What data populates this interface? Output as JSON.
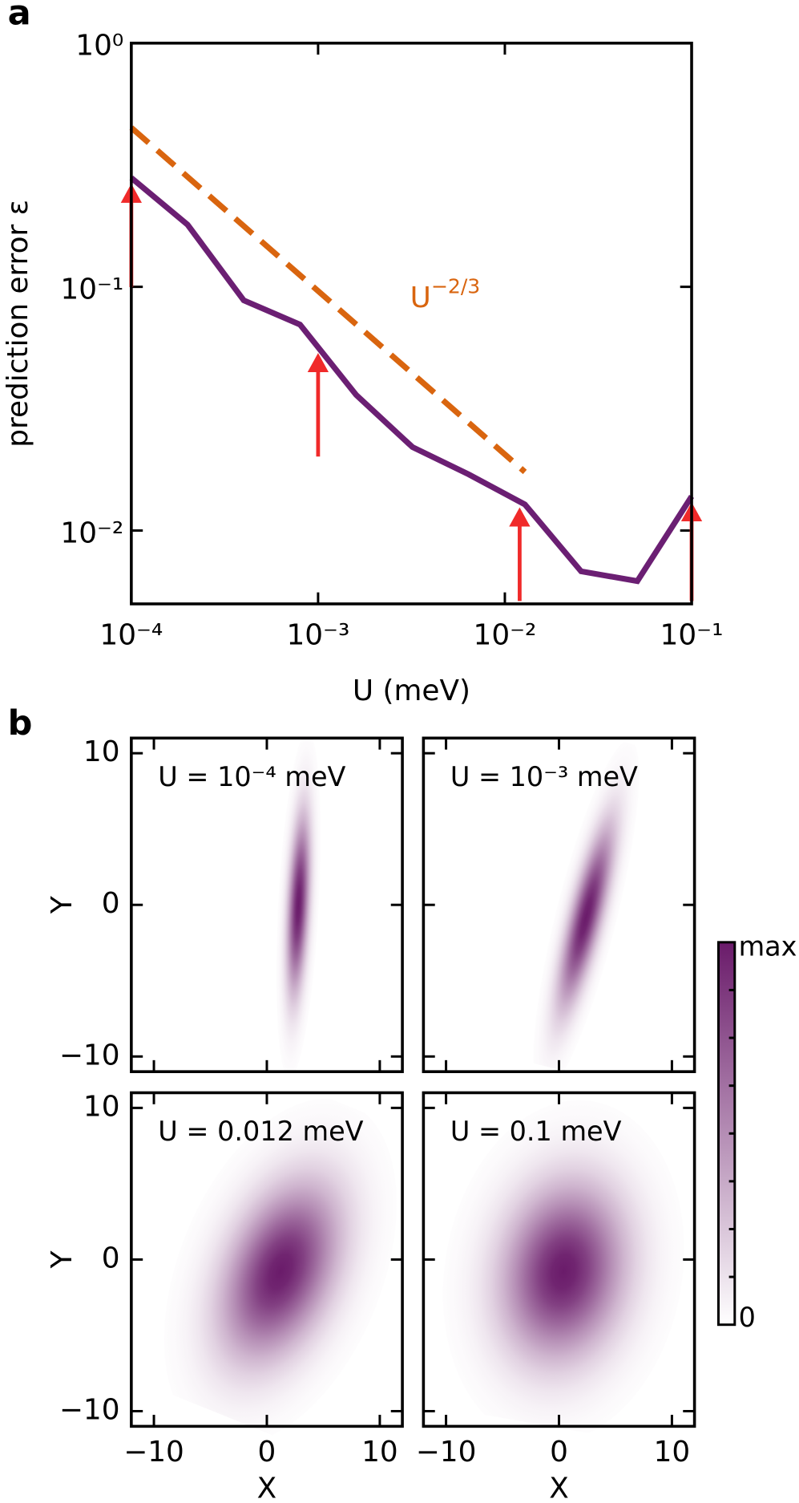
{
  "chart_data": [
    {
      "type": "line",
      "panel_label": "a",
      "xlabel": "U (meV)",
      "ylabel": "prediction error ε",
      "xscale": "log",
      "yscale": "log",
      "xlim": [
        0.0001,
        0.1
      ],
      "ylim": [
        0.005,
        1
      ],
      "xticks": [
        {
          "value": 0.0001,
          "label": "10⁻⁴"
        },
        {
          "value": 0.001,
          "label": "10⁻³"
        },
        {
          "value": 0.01,
          "label": "10⁻²"
        },
        {
          "value": 0.1,
          "label": "10⁻¹"
        }
      ],
      "yticks": [
        {
          "value": 0.01,
          "label": "10⁻²"
        },
        {
          "value": 0.1,
          "label": "10⁻¹"
        },
        {
          "value": 1,
          "label": "10⁰"
        }
      ],
      "series": [
        {
          "color": "#6b1f73",
          "x": [
            0.0001,
            0.0002,
            0.0004,
            0.0008,
            0.0016,
            0.0032,
            0.0064,
            0.0128,
            0.0256,
            0.0512,
            0.1
          ],
          "values": [
            0.28,
            0.18,
            0.088,
            0.07,
            0.036,
            0.022,
            0.017,
            0.0128,
            0.0068,
            0.0062,
            0.0138
          ]
        },
        {
          "color": "#d9650f",
          "dashed": true,
          "x": [
            0.0001,
            0.0128
          ],
          "values": [
            0.45,
            0.0174
          ]
        }
      ],
      "annotation": {
        "base": "U",
        "exponent": "−2/3",
        "color": "#d9650f"
      },
      "arrows": {
        "color": "#f02a2a",
        "x": [
          0.0001,
          0.001,
          0.012,
          0.1
        ]
      }
    },
    {
      "type": "density",
      "panel_label": "b",
      "xlabel": "X",
      "ylabel": "Y",
      "xlim": [
        -12,
        12
      ],
      "ylim": [
        -11,
        11
      ],
      "xticks": [
        {
          "value": -10,
          "label": "−10"
        },
        0,
        10
      ],
      "yticks": [
        {
          "value": -10,
          "label": "−10"
        },
        0,
        10
      ],
      "cmap": [
        "#ffffff",
        "#6a1b6a"
      ],
      "colorbar_labels": [
        "0",
        "max"
      ],
      "panels": [
        {
          "title": "U = 10⁻⁴ meV",
          "cx": 2.8,
          "cy": 0,
          "sx": 0.6,
          "sy": 3.8,
          "angle": 3
        },
        {
          "title": "U = 10⁻³ meV",
          "cx": 2.4,
          "cy": -0.8,
          "sx": 0.9,
          "sy": 4,
          "angle": 14
        },
        {
          "title": "U = 0.012 meV",
          "cx": 1.2,
          "cy": -0.8,
          "sx": 3,
          "sy": 4,
          "angle": 22
        },
        {
          "title": "U = 0.1 meV",
          "cx": 0.4,
          "cy": -0.8,
          "sx": 3.5,
          "sy": 3.8,
          "angle": 10
        }
      ]
    }
  ]
}
